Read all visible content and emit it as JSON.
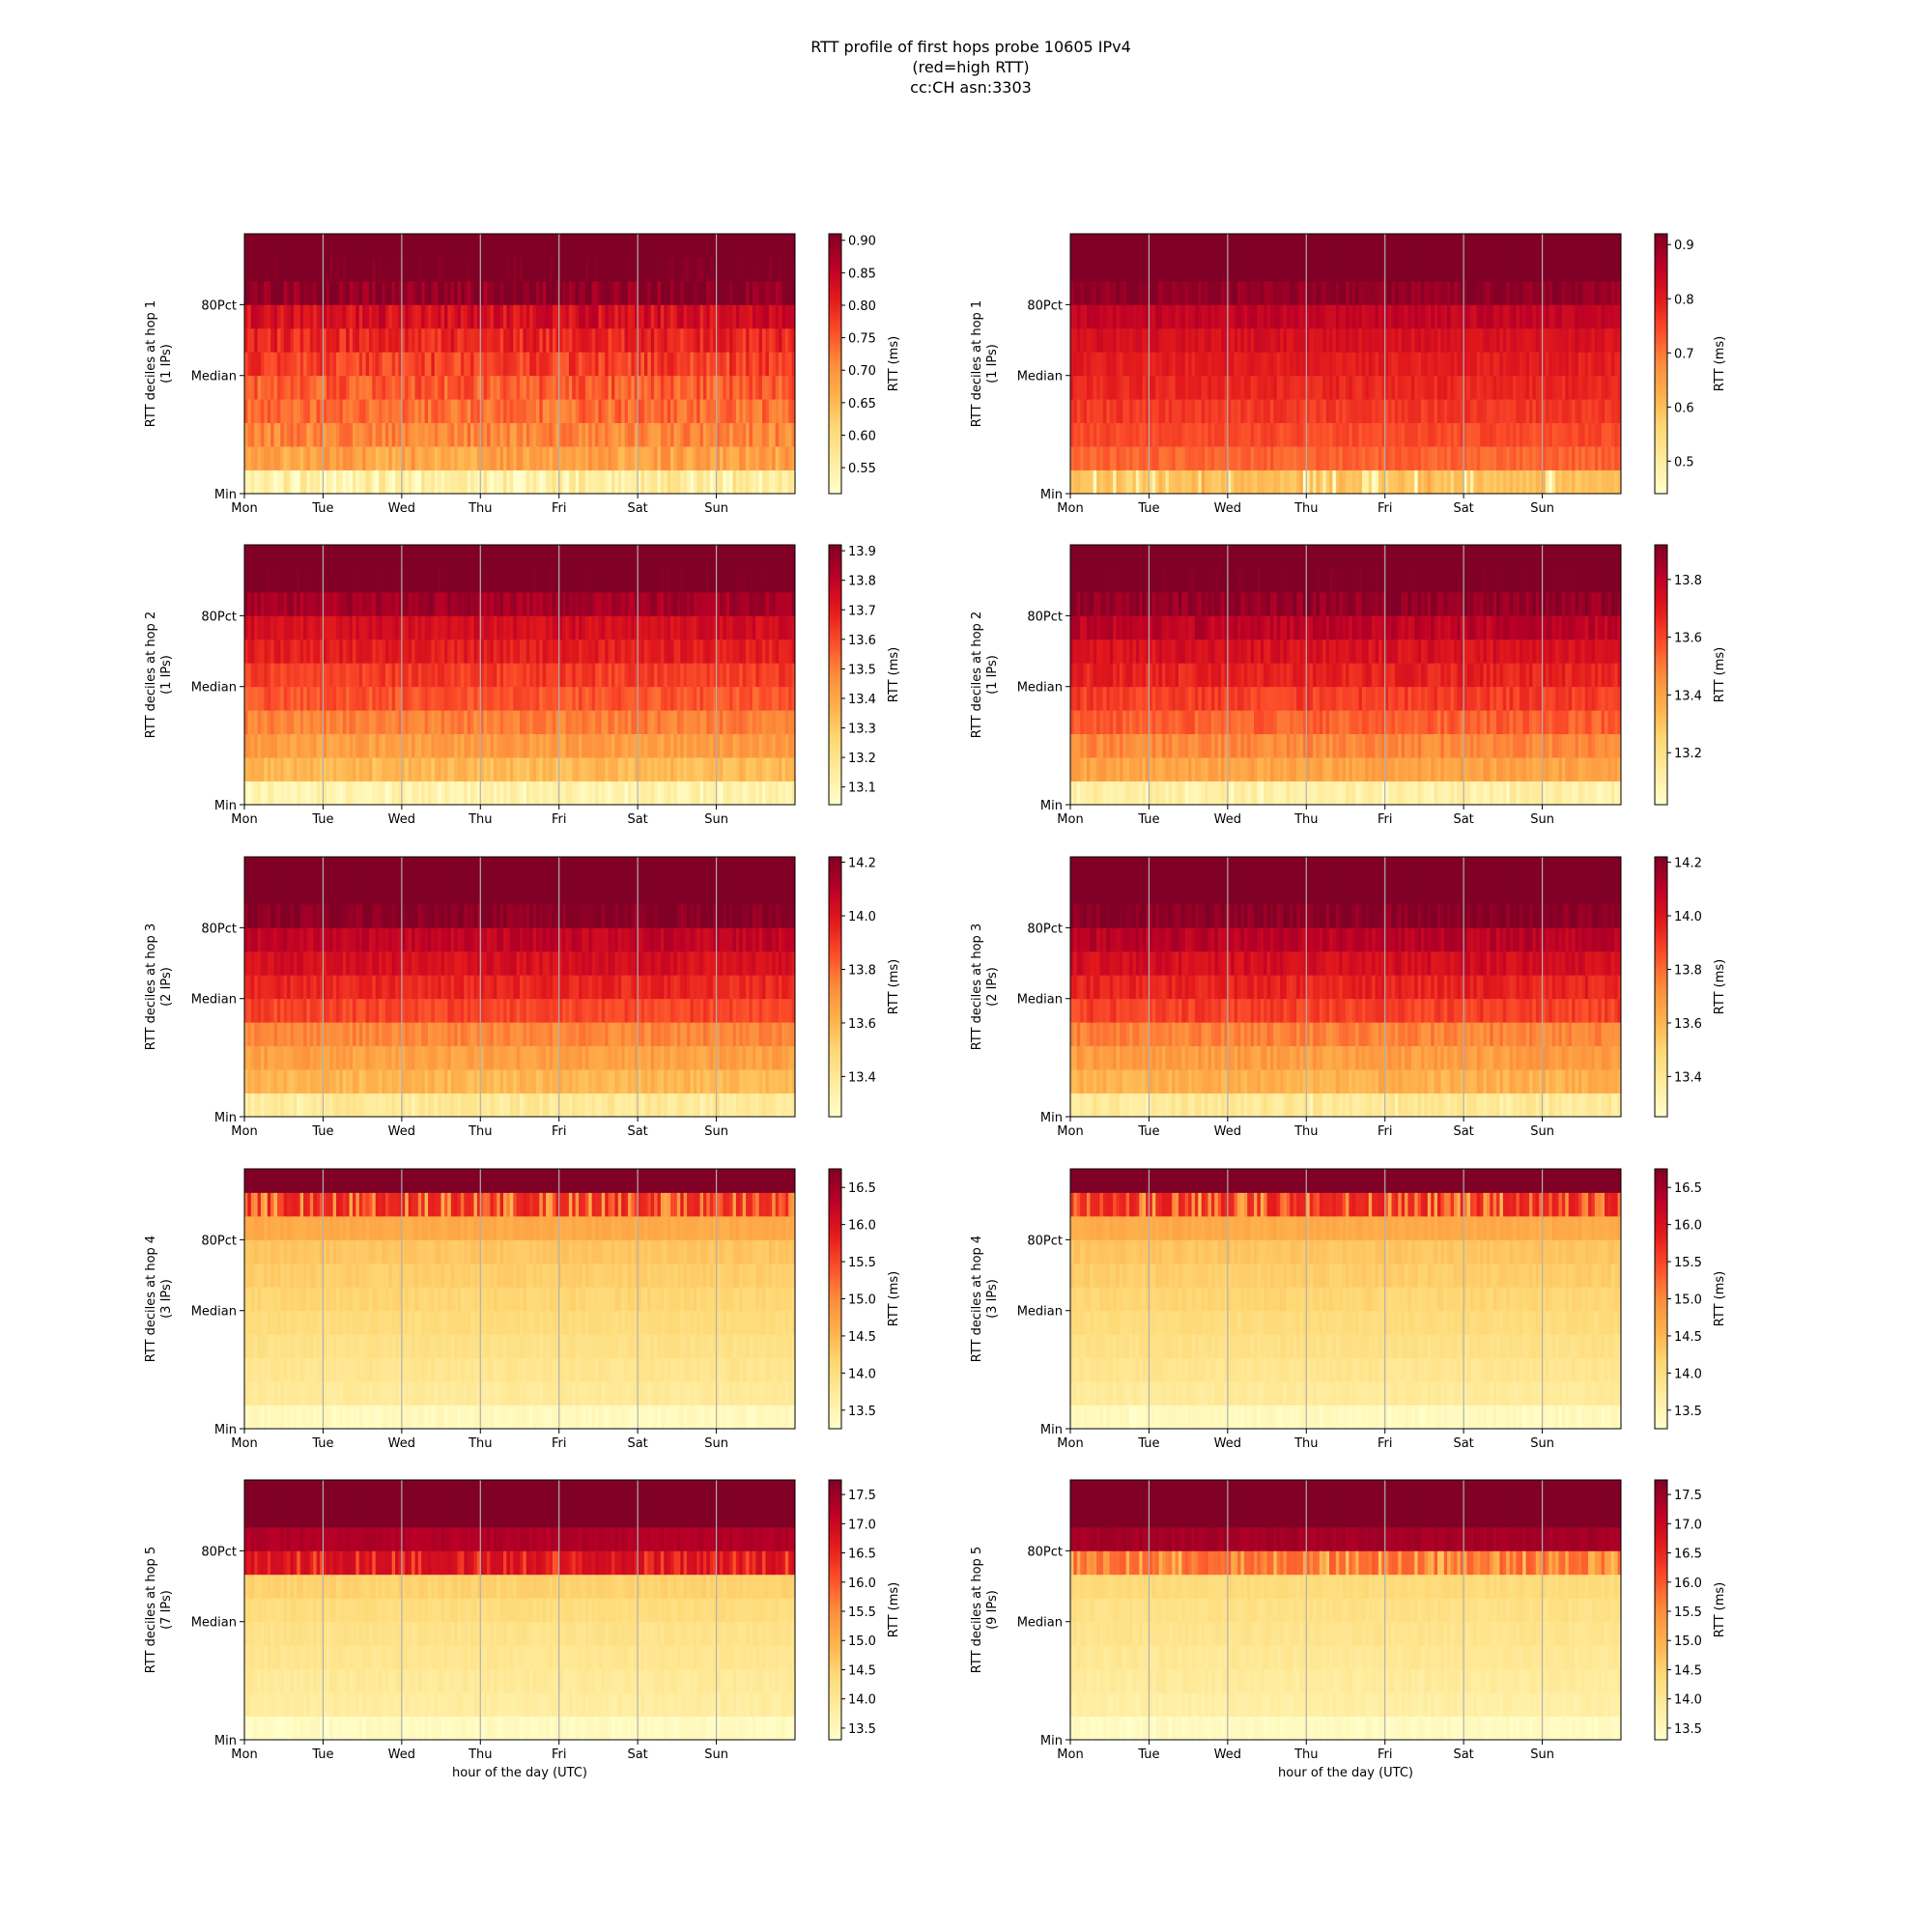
{
  "title_lines": [
    "RTT profile of first hops probe 10605 IPv4",
    "(red=high RTT)",
    "cc:CH asn:3303"
  ],
  "chart_data": [
    {
      "type": "heatmap",
      "ylabel": "RTT deciles at hop 1",
      "ylabel_sub": "(1 IPs)",
      "colorbar_label": "RTT (ms)",
      "clim": [
        0.51,
        0.91
      ],
      "colorbar_ticks": [
        0.55,
        0.6,
        0.65,
        0.7,
        0.75,
        0.8,
        0.85,
        0.9
      ],
      "colorbar_tick_labels": [
        "0.55",
        "0.60",
        "0.65",
        "0.70",
        "0.75",
        "0.80",
        "0.85",
        "0.90"
      ],
      "decile_rtt": [
        0.56,
        0.68,
        0.71,
        0.735,
        0.75,
        0.775,
        0.8,
        0.83,
        0.9,
        0.93,
        0.95
      ],
      "noise": 0.035,
      "bottom_noise": 0.1,
      "seed": 11
    },
    {
      "type": "heatmap",
      "ylabel": "RTT deciles at hop 1",
      "ylabel_sub": "(1 IPs)",
      "colorbar_label": "RTT (ms)",
      "clim": [
        0.44,
        0.92
      ],
      "colorbar_ticks": [
        0.5,
        0.6,
        0.7,
        0.8,
        0.9
      ],
      "colorbar_tick_labels": [
        "0.5",
        "0.6",
        "0.7",
        "0.8",
        "0.9"
      ],
      "decile_rtt": [
        0.6,
        0.72,
        0.745,
        0.765,
        0.785,
        0.8,
        0.82,
        0.85,
        0.9,
        0.95,
        0.97
      ],
      "noise": 0.02,
      "bottom_noise": 0.12,
      "seed": 23
    },
    {
      "type": "heatmap",
      "ylabel": "RTT deciles at hop 2",
      "ylabel_sub": "(1 IPs)",
      "colorbar_label": "RTT (ms)",
      "clim": [
        13.04,
        13.92
      ],
      "colorbar_ticks": [
        13.1,
        13.2,
        13.3,
        13.4,
        13.5,
        13.6,
        13.7,
        13.8,
        13.9
      ],
      "colorbar_tick_labels": [
        "13.1",
        "13.2",
        "13.3",
        "13.4",
        "13.5",
        "13.6",
        "13.7",
        "13.8",
        "13.9"
      ],
      "decile_rtt": [
        13.12,
        13.35,
        13.43,
        13.5,
        13.58,
        13.63,
        13.7,
        13.75,
        13.85,
        13.95,
        14.0
      ],
      "noise": 0.05,
      "bottom_noise": 0.04,
      "seed": 37
    },
    {
      "type": "heatmap",
      "ylabel": "RTT deciles at hop 2",
      "ylabel_sub": "(1 IPs)",
      "colorbar_label": "RTT (ms)",
      "clim": [
        13.02,
        13.92
      ],
      "colorbar_ticks": [
        13.2,
        13.4,
        13.6,
        13.8
      ],
      "colorbar_tick_labels": [
        "13.2",
        "13.4",
        "13.6",
        "13.8"
      ],
      "decile_rtt": [
        13.12,
        13.4,
        13.47,
        13.55,
        13.62,
        13.68,
        13.73,
        13.8,
        13.88,
        13.95,
        14.0
      ],
      "noise": 0.05,
      "bottom_noise": 0.04,
      "seed": 41
    },
    {
      "type": "heatmap",
      "ylabel": "RTT deciles at hop 3",
      "ylabel_sub": "(2 IPs)",
      "colorbar_label": "RTT (ms)",
      "clim": [
        13.25,
        14.22
      ],
      "colorbar_ticks": [
        13.4,
        13.6,
        13.8,
        14.0,
        14.2
      ],
      "colorbar_tick_labels": [
        "13.4",
        "13.6",
        "13.8",
        "14.0",
        "14.2"
      ],
      "decile_rtt": [
        13.4,
        13.6,
        13.67,
        13.74,
        13.88,
        13.95,
        14.02,
        14.08,
        14.2,
        14.3,
        14.35
      ],
      "noise": 0.05,
      "bottom_noise": 0.04,
      "seed": 53
    },
    {
      "type": "heatmap",
      "ylabel": "RTT deciles at hop 3",
      "ylabel_sub": "(2 IPs)",
      "colorbar_label": "RTT (ms)",
      "clim": [
        13.25,
        14.22
      ],
      "colorbar_ticks": [
        13.4,
        13.6,
        13.8,
        14.0,
        14.2
      ],
      "colorbar_tick_labels": [
        "13.4",
        "13.6",
        "13.8",
        "14.0",
        "14.2"
      ],
      "decile_rtt": [
        13.4,
        13.62,
        13.68,
        13.75,
        13.89,
        13.96,
        14.03,
        14.1,
        14.2,
        14.3,
        14.35
      ],
      "noise": 0.05,
      "bottom_noise": 0.04,
      "seed": 67
    },
    {
      "type": "heatmap",
      "ylabel": "RTT deciles at hop 4",
      "ylabel_sub": "(3 IPs)",
      "colorbar_label": "RTT (ms)",
      "clim": [
        13.25,
        16.75
      ],
      "colorbar_ticks": [
        13.5,
        14.0,
        14.5,
        15.0,
        15.5,
        16.0,
        16.5
      ],
      "colorbar_tick_labels": [
        "13.5",
        "14.0",
        "14.5",
        "15.0",
        "15.5",
        "16.0",
        "16.5"
      ],
      "decile_rtt": [
        13.4,
        13.75,
        13.85,
        13.95,
        14.05,
        14.15,
        14.25,
        14.35,
        14.65,
        15.8,
        17.0
      ],
      "noise": 0.08,
      "bottom_noise": 0.06,
      "spike_row": 9,
      "spike_noise": 1.3,
      "seed": 71
    },
    {
      "type": "heatmap",
      "ylabel": "RTT deciles at hop 4",
      "ylabel_sub": "(3 IPs)",
      "colorbar_label": "RTT (ms)",
      "clim": [
        13.25,
        16.75
      ],
      "colorbar_ticks": [
        13.5,
        14.0,
        14.5,
        15.0,
        15.5,
        16.0,
        16.5
      ],
      "colorbar_tick_labels": [
        "13.5",
        "14.0",
        "14.5",
        "15.0",
        "15.5",
        "16.0",
        "16.5"
      ],
      "decile_rtt": [
        13.4,
        13.75,
        13.85,
        13.95,
        14.05,
        14.15,
        14.25,
        14.35,
        14.65,
        15.8,
        17.0
      ],
      "noise": 0.08,
      "bottom_noise": 0.06,
      "spike_row": 9,
      "spike_noise": 1.3,
      "seed": 83
    },
    {
      "type": "heatmap",
      "ylabel": "RTT deciles at hop 5",
      "ylabel_sub": "(7 IPs)",
      "colorbar_label": "RTT (ms)",
      "xlabel": "hour of the day (UTC)",
      "clim": [
        13.3,
        17.75
      ],
      "colorbar_ticks": [
        13.5,
        14.0,
        14.5,
        15.0,
        15.5,
        16.0,
        16.5,
        17.0,
        17.5
      ],
      "colorbar_tick_labels": [
        "13.5",
        "14.0",
        "14.5",
        "15.0",
        "15.5",
        "16.0",
        "16.5",
        "17.0",
        "17.5"
      ],
      "decile_rtt": [
        13.45,
        13.85,
        13.95,
        14.05,
        14.15,
        14.3,
        14.5,
        16.9,
        17.3,
        18.0,
        18.2
      ],
      "noise": 0.1,
      "bottom_noise": 0.06,
      "spike_row": 7,
      "spike_noise": 0.9,
      "seed": 97
    },
    {
      "type": "heatmap",
      "ylabel": "RTT deciles at hop 5",
      "ylabel_sub": "(9 IPs)",
      "colorbar_label": "RTT (ms)",
      "xlabel": "hour of the day (UTC)",
      "clim": [
        13.3,
        17.75
      ],
      "colorbar_ticks": [
        13.5,
        14.0,
        14.5,
        15.0,
        15.5,
        16.0,
        16.5,
        17.0,
        17.5
      ],
      "colorbar_tick_labels": [
        "13.5",
        "14.0",
        "14.5",
        "15.0",
        "15.5",
        "16.0",
        "16.5",
        "17.0",
        "17.5"
      ],
      "decile_rtt": [
        13.45,
        13.8,
        13.9,
        14.0,
        14.1,
        14.2,
        14.35,
        15.9,
        17.4,
        18.0,
        18.2
      ],
      "noise": 0.1,
      "bottom_noise": 0.06,
      "spike_row": 7,
      "spike_noise": 1.2,
      "seed": 101
    }
  ],
  "shared": {
    "x_tick_labels": [
      "Mon",
      "Tue",
      "Wed",
      "Thu",
      "Fri",
      "Sat",
      "Sun"
    ],
    "y_tick_labels": [
      "Min",
      "Median",
      "80Pct"
    ],
    "y_tick_rows": [
      0,
      5,
      8
    ],
    "n_rows": 11,
    "n_cols": 168,
    "hours_per_day": 24,
    "colormap": [
      "#ffffcc",
      "#ffeda0",
      "#fed976",
      "#feb24c",
      "#fd8d3c",
      "#fc4e2a",
      "#e31a1c",
      "#bd0026",
      "#800026"
    ],
    "grid_color": "#b0b0b0"
  }
}
